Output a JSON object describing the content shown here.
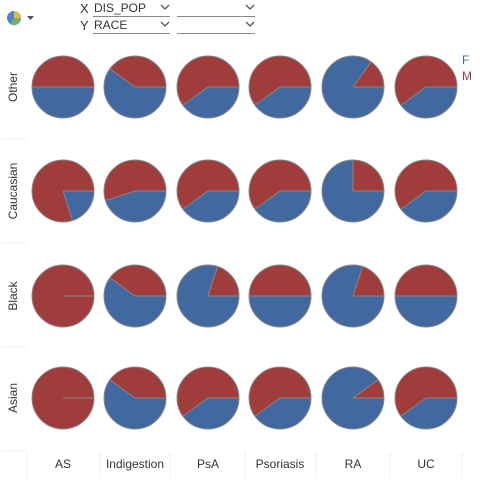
{
  "toolbar": {
    "chart_type_icon": "pie-chart-icon",
    "x_letter": "X",
    "y_letter": "Y",
    "x_field": "DIS_POP",
    "y_field": "RACE",
    "x_secondary": "",
    "y_secondary": ""
  },
  "legend": {
    "items": [
      {
        "label": "F",
        "color": "#41689f"
      },
      {
        "label": "M",
        "color": "#a03c3c"
      }
    ]
  },
  "chart_data": {
    "type": "pie",
    "columns": [
      "AS",
      "Indigestion",
      "PsA",
      "Psoriasis",
      "RA",
      "UC"
    ],
    "rows": [
      "Other",
      "Caucasian",
      "Black",
      "Asian"
    ],
    "series": [
      "F",
      "M"
    ],
    "f_share": [
      [
        0.5,
        0.6,
        0.4,
        0.4,
        0.85,
        0.4
      ],
      [
        0.2,
        0.45,
        0.4,
        0.4,
        0.75,
        0.4
      ],
      [
        0.0,
        0.6,
        0.8,
        0.5,
        0.8,
        0.5
      ],
      [
        0.0,
        0.6,
        0.4,
        0.4,
        0.9,
        0.4
      ]
    ]
  }
}
